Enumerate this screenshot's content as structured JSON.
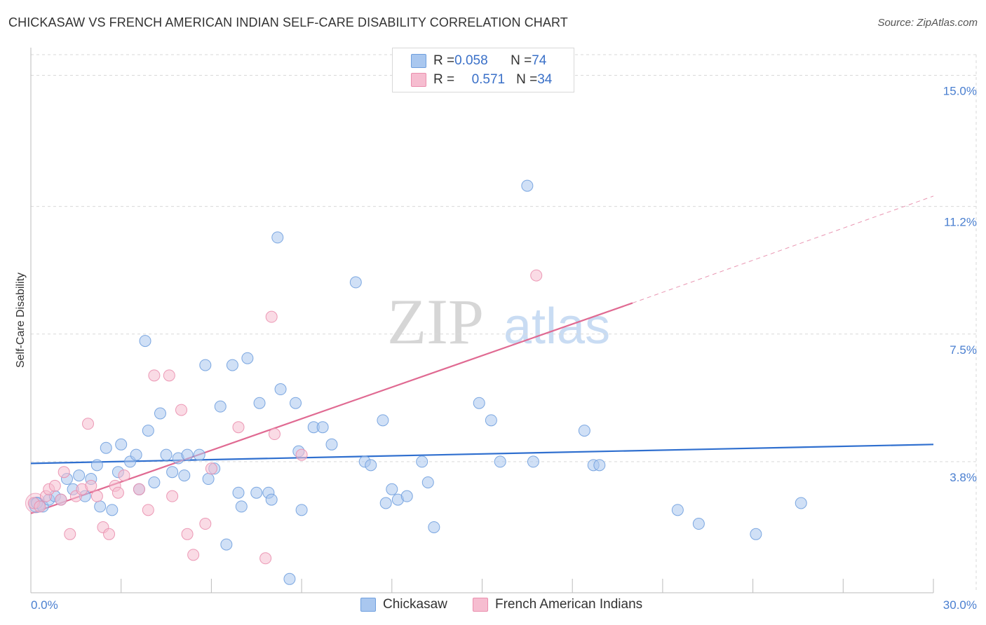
{
  "title": "CHICKASAW VS FRENCH AMERICAN INDIAN SELF-CARE DISABILITY CORRELATION CHART",
  "source": "Source: ZipAtlas.com",
  "watermark": {
    "zip": "ZIP",
    "atlas": "atlas"
  },
  "colors": {
    "blue_fill": "#a9c7ef",
    "blue_stroke": "#6f9fde",
    "blue_line": "#2f6fcf",
    "pink_fill": "#f6bdd0",
    "pink_stroke": "#ea8fae",
    "pink_line": "#e06a92",
    "tick_text": "#4a7fd0",
    "grid": "#d9d9d9"
  },
  "legend": {
    "rows": [
      {
        "r_label": "R = ",
        "r_value": "0.058",
        "n_label": "N = ",
        "n_value": "74"
      },
      {
        "r_label": "R = ",
        "r_value": "0.571",
        "n_label": "N = ",
        "n_value": "34"
      }
    ]
  },
  "chart_data": {
    "type": "scatter",
    "title": "CHICKASAW VS FRENCH AMERICAN INDIAN SELF-CARE DISABILITY CORRELATION CHART",
    "xlabel": "",
    "ylabel": "Self-Care Disability",
    "xlim": [
      0,
      30
    ],
    "ylim": [
      0,
      15.6
    ],
    "x_tick_labels": [
      "0.0%",
      "30.0%"
    ],
    "y_ticks": [
      3.8,
      7.5,
      11.2,
      15.0
    ],
    "y_tick_labels": [
      "3.8%",
      "7.5%",
      "11.2%",
      "15.0%"
    ],
    "grid": true,
    "legend_position": "bottom-center",
    "series": [
      {
        "name": "Chickasaw",
        "color": "#a9c7ef",
        "r": "0.058",
        "n": "74",
        "points": [
          [
            0.2,
            2.6
          ],
          [
            0.4,
            2.5
          ],
          [
            0.6,
            2.7
          ],
          [
            0.8,
            2.8
          ],
          [
            1.0,
            2.7
          ],
          [
            1.2,
            3.3
          ],
          [
            1.4,
            3.0
          ],
          [
            1.6,
            3.4
          ],
          [
            1.8,
            2.8
          ],
          [
            2.0,
            3.3
          ],
          [
            2.2,
            3.7
          ],
          [
            2.3,
            2.5
          ],
          [
            2.5,
            4.2
          ],
          [
            2.7,
            2.4
          ],
          [
            2.9,
            3.5
          ],
          [
            3.0,
            4.3
          ],
          [
            3.3,
            3.8
          ],
          [
            3.5,
            4.0
          ],
          [
            3.6,
            3.0
          ],
          [
            3.8,
            7.3
          ],
          [
            3.9,
            4.7
          ],
          [
            4.1,
            3.2
          ],
          [
            4.3,
            5.2
          ],
          [
            4.5,
            4.0
          ],
          [
            4.7,
            3.5
          ],
          [
            4.9,
            3.9
          ],
          [
            5.1,
            3.4
          ],
          [
            5.2,
            4.0
          ],
          [
            5.6,
            4.0
          ],
          [
            5.8,
            6.6
          ],
          [
            5.9,
            3.3
          ],
          [
            6.1,
            3.6
          ],
          [
            6.3,
            5.4
          ],
          [
            6.5,
            1.4
          ],
          [
            6.7,
            6.6
          ],
          [
            6.9,
            2.9
          ],
          [
            7.0,
            2.5
          ],
          [
            7.2,
            6.8
          ],
          [
            7.5,
            2.9
          ],
          [
            7.6,
            5.5
          ],
          [
            7.9,
            2.9
          ],
          [
            8.0,
            2.7
          ],
          [
            8.2,
            10.3
          ],
          [
            8.3,
            5.9
          ],
          [
            8.6,
            0.4
          ],
          [
            8.8,
            5.5
          ],
          [
            8.9,
            4.1
          ],
          [
            9.0,
            2.4
          ],
          [
            9.4,
            4.8
          ],
          [
            9.7,
            4.8
          ],
          [
            10.0,
            4.3
          ],
          [
            10.8,
            9.0
          ],
          [
            11.1,
            3.8
          ],
          [
            11.3,
            3.7
          ],
          [
            11.7,
            5.0
          ],
          [
            11.8,
            2.6
          ],
          [
            12.0,
            3.0
          ],
          [
            12.2,
            2.7
          ],
          [
            12.5,
            2.8
          ],
          [
            13.0,
            3.8
          ],
          [
            13.2,
            3.2
          ],
          [
            13.4,
            1.9
          ],
          [
            14.9,
            5.5
          ],
          [
            15.3,
            5.0
          ],
          [
            15.6,
            3.8
          ],
          [
            16.5,
            11.8
          ],
          [
            16.7,
            3.8
          ],
          [
            18.4,
            4.7
          ],
          [
            18.7,
            3.7
          ],
          [
            18.9,
            3.7
          ],
          [
            21.5,
            2.4
          ],
          [
            22.2,
            2.0
          ],
          [
            24.1,
            1.7
          ],
          [
            25.6,
            2.6
          ]
        ],
        "trend": {
          "x": [
            0,
            30
          ],
          "y": [
            3.75,
            4.3
          ]
        }
      },
      {
        "name": "French American Indians",
        "color": "#f6bdd0",
        "r": "0.571",
        "n": "34",
        "points": [
          [
            0.1,
            2.6
          ],
          [
            0.3,
            2.5
          ],
          [
            0.5,
            2.8
          ],
          [
            0.6,
            3.0
          ],
          [
            0.8,
            3.1
          ],
          [
            1.0,
            2.7
          ],
          [
            1.1,
            3.5
          ],
          [
            1.3,
            1.7
          ],
          [
            1.5,
            2.8
          ],
          [
            1.7,
            3.0
          ],
          [
            1.9,
            4.9
          ],
          [
            2.0,
            3.1
          ],
          [
            2.2,
            2.8
          ],
          [
            2.4,
            1.9
          ],
          [
            2.6,
            1.7
          ],
          [
            2.8,
            3.1
          ],
          [
            2.9,
            2.9
          ],
          [
            3.1,
            3.4
          ],
          [
            3.6,
            3.0
          ],
          [
            3.9,
            2.4
          ],
          [
            4.1,
            6.3
          ],
          [
            4.6,
            6.3
          ],
          [
            4.7,
            2.8
          ],
          [
            5.0,
            5.3
          ],
          [
            5.2,
            1.7
          ],
          [
            5.4,
            1.1
          ],
          [
            5.8,
            2.0
          ],
          [
            6.0,
            3.6
          ],
          [
            6.9,
            4.8
          ],
          [
            7.8,
            1.0
          ],
          [
            8.0,
            8.0
          ],
          [
            8.1,
            4.6
          ],
          [
            9.0,
            4.0
          ],
          [
            16.8,
            9.2
          ]
        ],
        "trend": {
          "x": [
            0,
            20
          ],
          "y": [
            2.3,
            8.4
          ]
        },
        "trend_dashed_extension": {
          "x": [
            20,
            30
          ],
          "y": [
            8.4,
            11.5
          ]
        }
      }
    ]
  }
}
